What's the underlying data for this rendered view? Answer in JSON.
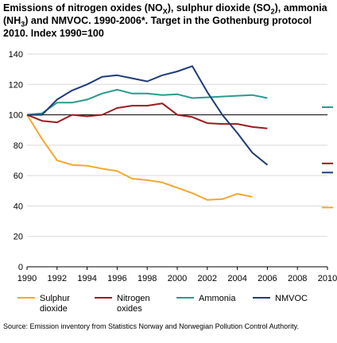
{
  "title": {
    "part1": "Emissions of nitrogen oxides (NO",
    "sub1": "X",
    "part2": "), sulphur dioxide (SO",
    "sub2": "2",
    "part3": "), ammonia (NH",
    "sub3": "3",
    "part4": ") and NMVOC. 1990-2006*. Target in the Gothenburg protocol 2010. Index 1990=100"
  },
  "source": "Source: Emission inventory from Statistics Norway and Norwegian Pollution Control Authority.",
  "chart_data": {
    "type": "line",
    "xlabel": "",
    "ylabel": "",
    "x": [
      1990,
      1991,
      1992,
      1993,
      1994,
      1995,
      1996,
      1997,
      1998,
      1999,
      2000,
      2001,
      2002,
      2003,
      2004,
      2005,
      2006
    ],
    "xlim": [
      1990,
      2010
    ],
    "ylim": [
      0,
      140
    ],
    "x_ticks": [
      1990,
      1992,
      1994,
      1996,
      1998,
      2000,
      2002,
      2004,
      2006,
      2008,
      2010
    ],
    "y_ticks": [
      0,
      20,
      40,
      60,
      80,
      100,
      120,
      140
    ],
    "reference_line": 100,
    "grid": "horizontal",
    "legend_position": "bottom",
    "series": [
      {
        "name": "Sulphur dioxide",
        "color": "#f4a733",
        "values": [
          100,
          84,
          70,
          67,
          66.5,
          64.5,
          63,
          58,
          57,
          55.5,
          52,
          48.5,
          44,
          44.5,
          48,
          46,
          null
        ],
        "target_2010": 39
      },
      {
        "name": "Nitrogen oxides",
        "color": "#9b1b1f",
        "values": [
          100,
          96,
          95,
          100,
          99,
          100,
          104.5,
          106,
          106,
          107.5,
          100,
          98.5,
          94.5,
          94,
          94,
          92,
          91
        ],
        "target_2010": 68
      },
      {
        "name": "Ammonia",
        "color": "#2a9a8e",
        "values": [
          100,
          101,
          108,
          108,
          110,
          114,
          116.5,
          114,
          114,
          113,
          113.5,
          111,
          111.5,
          112,
          112.5,
          113,
          111
        ],
        "target_2010": 105
      },
      {
        "name": "NMVOC",
        "color": "#1f3b7a",
        "values": [
          100,
          100,
          110,
          116,
          120,
          125,
          126,
          124,
          122,
          126,
          128.5,
          132,
          115,
          100,
          88,
          75,
          67
        ],
        "target_2010": 62
      }
    ]
  },
  "legend": [
    {
      "line1": "Sulphur",
      "line2": "dioxide"
    },
    {
      "line1": "Nitrogen",
      "line2": "oxides"
    },
    {
      "line1": "Ammonia",
      "line2": ""
    },
    {
      "line1": "NMVOC",
      "line2": ""
    }
  ]
}
